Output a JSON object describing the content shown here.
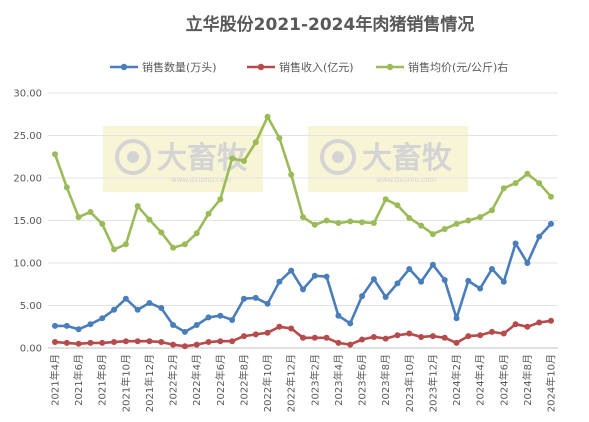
{
  "chart_data": {
    "type": "line",
    "title": "立华股份2021-2024年肉猪销售情况",
    "ylim": [
      0,
      30
    ],
    "yticks": [
      "0.00",
      "5.00",
      "10.00",
      "15.00",
      "20.00",
      "25.00",
      "30.00"
    ],
    "grid": "horizontal",
    "legend": "top",
    "watermark": {
      "brand": "大畜牧",
      "sub": "www.dxumu.com"
    },
    "x_labels": [
      "2021年4月",
      "2021年6月",
      "2021年8月",
      "2021年10月",
      "2021年12月",
      "2022年2月",
      "2022年4月",
      "2022年6月",
      "2022年8月",
      "2022年10月",
      "2022年12月",
      "2023年2月",
      "2023年4月",
      "2023年6月",
      "2023年8月",
      "2023年10月",
      "2023年12月",
      "2024年2月",
      "2024年4月",
      "2024年6月",
      "2024年8月",
      "2024年10月"
    ],
    "series": [
      {
        "name": "销售数量(万头)",
        "color": "#4a7ebb",
        "values": [
          2.6,
          2.6,
          2.2,
          2.8,
          3.5,
          4.5,
          5.8,
          4.5,
          5.3,
          4.7,
          2.7,
          1.9,
          2.7,
          3.6,
          3.8,
          3.3,
          5.8,
          5.9,
          5.2,
          7.8,
          9.1,
          6.9,
          8.5,
          8.4,
          3.8,
          2.9,
          6.1,
          8.1,
          6.0,
          7.6,
          9.3,
          7.8,
          9.8,
          8.0,
          3.5,
          7.9,
          7.0,
          9.3,
          7.8,
          12.3,
          10.0,
          13.1,
          14.6
        ]
      },
      {
        "name": "销售收入(亿元)",
        "color": "#b54b4b",
        "values": [
          0.7,
          0.6,
          0.5,
          0.6,
          0.6,
          0.7,
          0.8,
          0.8,
          0.8,
          0.7,
          0.4,
          0.2,
          0.4,
          0.7,
          0.8,
          0.8,
          1.4,
          1.6,
          1.8,
          2.5,
          2.3,
          1.2,
          1.2,
          1.2,
          0.6,
          0.4,
          1.0,
          1.3,
          1.1,
          1.5,
          1.7,
          1.3,
          1.4,
          1.2,
          0.6,
          1.4,
          1.5,
          1.9,
          1.7,
          2.8,
          2.5,
          3.0,
          3.2
        ]
      },
      {
        "name": "销售均价(元/公斤)右",
        "color": "#9bbb59",
        "values": [
          22.8,
          18.9,
          15.4,
          16.0,
          14.6,
          11.6,
          12.2,
          16.7,
          15.1,
          13.6,
          11.8,
          12.2,
          13.5,
          15.8,
          17.5,
          22.3,
          22.0,
          24.2,
          27.2,
          24.7,
          20.4,
          15.4,
          14.5,
          15.0,
          14.7,
          14.9,
          14.8,
          14.7,
          17.5,
          16.8,
          15.3,
          14.4,
          13.4,
          14.0,
          14.6,
          15.0,
          15.4,
          16.2,
          18.8,
          19.4,
          20.5,
          19.4,
          17.8
        ]
      }
    ]
  }
}
